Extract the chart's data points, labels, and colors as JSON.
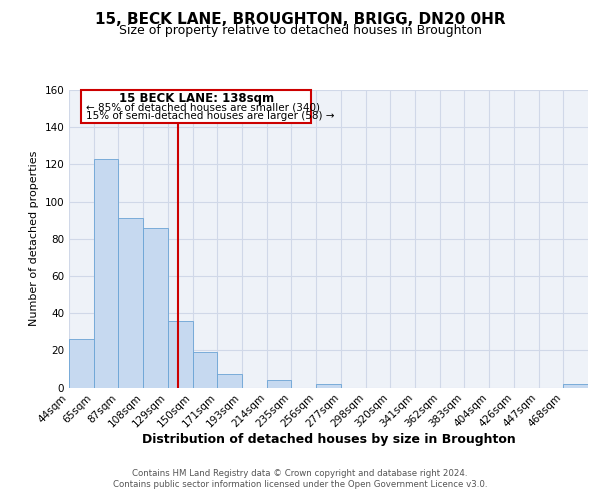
{
  "title": "15, BECK LANE, BROUGHTON, BRIGG, DN20 0HR",
  "subtitle": "Size of property relative to detached houses in Broughton",
  "xlabel": "Distribution of detached houses by size in Broughton",
  "ylabel": "Number of detached properties",
  "bin_labels": [
    "44sqm",
    "65sqm",
    "87sqm",
    "108sqm",
    "129sqm",
    "150sqm",
    "171sqm",
    "193sqm",
    "214sqm",
    "235sqm",
    "256sqm",
    "277sqm",
    "298sqm",
    "320sqm",
    "341sqm",
    "362sqm",
    "383sqm",
    "404sqm",
    "426sqm",
    "447sqm",
    "468sqm"
  ],
  "bar_heights": [
    26,
    123,
    91,
    86,
    36,
    19,
    7,
    0,
    4,
    0,
    2,
    0,
    0,
    0,
    0,
    0,
    0,
    0,
    0,
    0,
    2
  ],
  "bar_color": "#c6d9f0",
  "bar_edge_color": "#6aa3d5",
  "ylim": [
    0,
    160
  ],
  "yticks": [
    0,
    20,
    40,
    60,
    80,
    100,
    120,
    140,
    160
  ],
  "property_label": "15 BECK LANE: 138sqm",
  "annotation_line1": "← 85% of detached houses are smaller (340)",
  "annotation_line2": "15% of semi-detached houses are larger (58) →",
  "red_line_color": "#cc0000",
  "grid_color": "#d0d8e8",
  "bg_color": "#eef2f8",
  "footer_line1": "Contains HM Land Registry data © Crown copyright and database right 2024.",
  "footer_line2": "Contains public sector information licensed under the Open Government Licence v3.0.",
  "title_fontsize": 11,
  "subtitle_fontsize": 9,
  "tick_fontsize": 7.5,
  "ylabel_fontsize": 8,
  "xlabel_fontsize": 9,
  "n_bins": 21,
  "property_sqm": 138,
  "bin_start_sqm": [
    44,
    65,
    87,
    108,
    129,
    150,
    171,
    193,
    214,
    235,
    256,
    277,
    298,
    320,
    341,
    362,
    383,
    404,
    426,
    447,
    468
  ]
}
